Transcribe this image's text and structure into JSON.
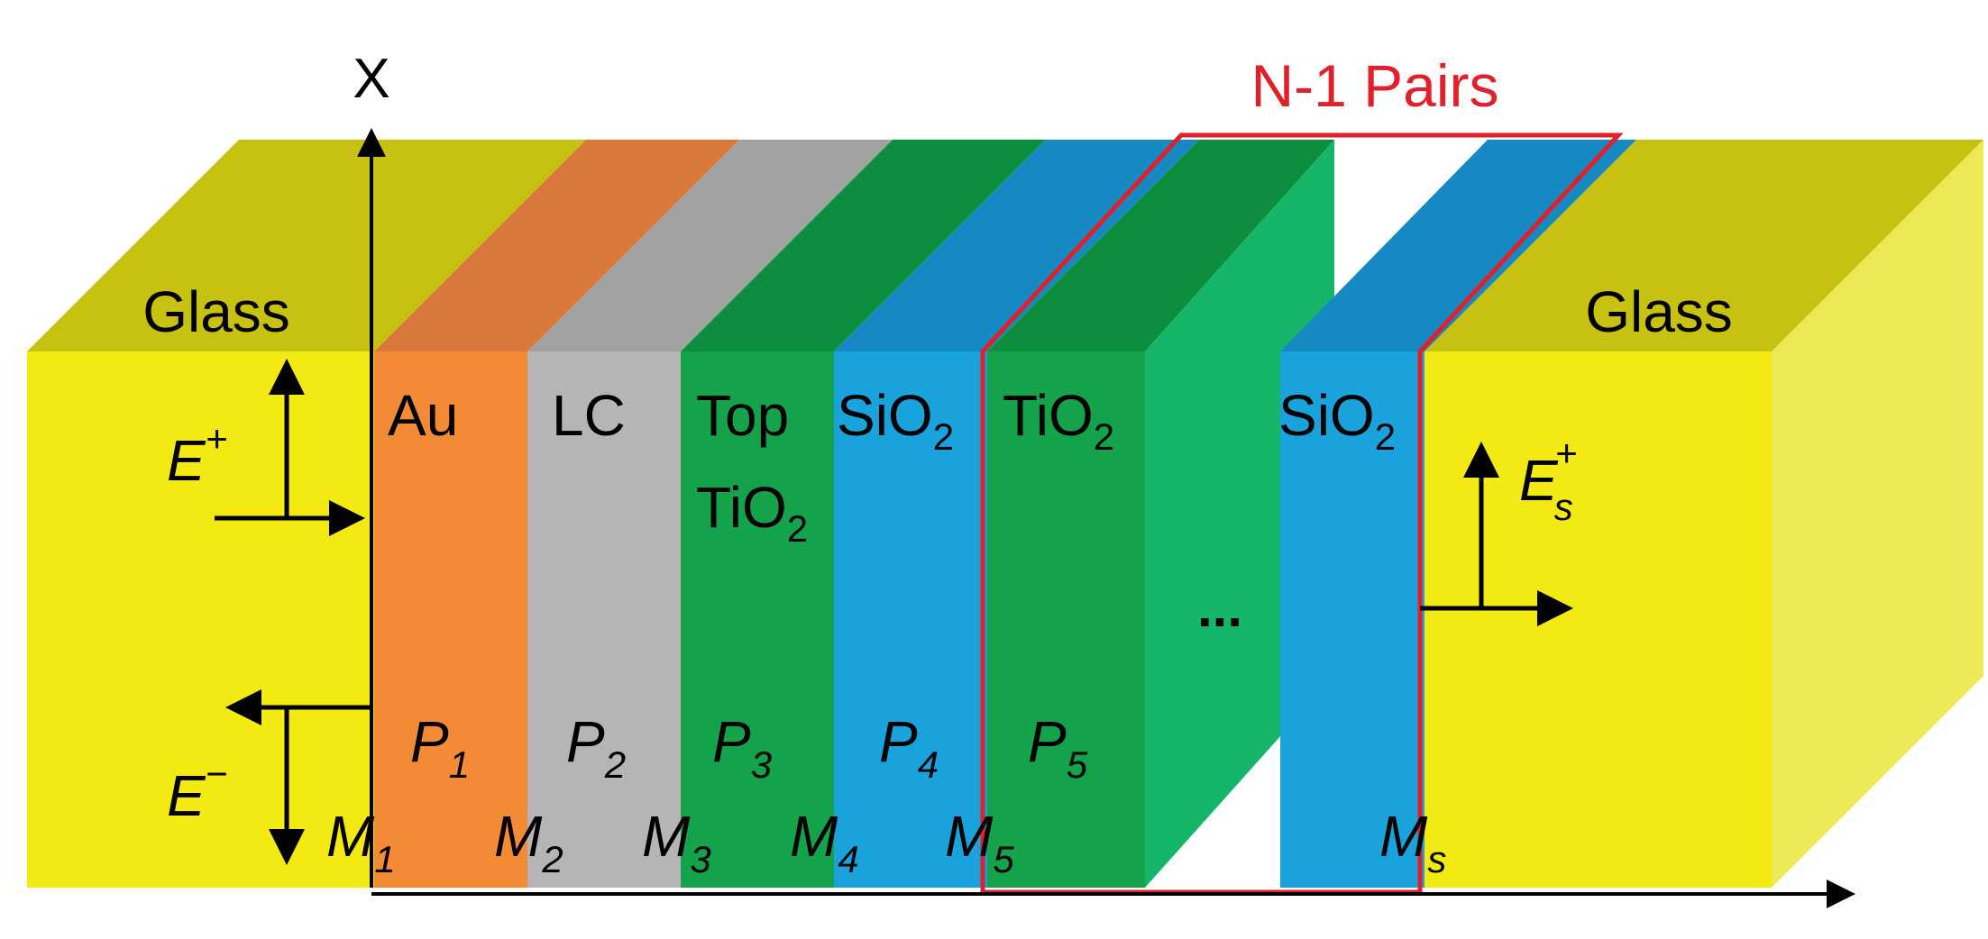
{
  "axes": {
    "x_axis_label": "X"
  },
  "pairs_label": "N-1 Pairs",
  "layers": [
    {
      "label": "Glass"
    },
    {
      "label": "Au"
    },
    {
      "label": "LC"
    },
    {
      "label": "Top",
      "label2": "TiO",
      "sub": "2"
    },
    {
      "label": "SiO",
      "sub": "2"
    },
    {
      "label": "TiO",
      "sub": "2"
    },
    {
      "label": "SiO",
      "sub": "2"
    },
    {
      "label": "Glass"
    }
  ],
  "ellipsis": "...",
  "fields": {
    "e_plus": {
      "main": "E",
      "sup": "+"
    },
    "e_minus": {
      "main": "E",
      "sup": "−"
    },
    "es_plus": {
      "main": "E",
      "sub": "s",
      "sup": "+"
    }
  },
  "p_labels": [
    {
      "main": "P",
      "sub": "1"
    },
    {
      "main": "P",
      "sub": "2"
    },
    {
      "main": "P",
      "sub": "3"
    },
    {
      "main": "P",
      "sub": "4"
    },
    {
      "main": "P",
      "sub": "5"
    }
  ],
  "m_labels": [
    {
      "main": "M",
      "sub": "1"
    },
    {
      "main": "M",
      "sub": "2"
    },
    {
      "main": "M",
      "sub": "3"
    },
    {
      "main": "M",
      "sub": "4"
    },
    {
      "main": "M",
      "sub": "5"
    },
    {
      "main": "M",
      "sub": "s"
    }
  ],
  "colors": {
    "glass_front": "#f3ea13",
    "glass_top": "#c7c112",
    "glass_side": "#ecea55",
    "au_front": "#f38a36",
    "au_top": "#d9783b",
    "lc_front": "#b5b5b5",
    "lc_top": "#a2a2a2",
    "tio2_front": "#14a24a",
    "tio2_top": "#0c8e3e",
    "tio2_side": "#16b66a",
    "sio2_front": "#1aa2dc",
    "sio2_top": "#1689c2",
    "pairs_outline": "#e0202a"
  }
}
